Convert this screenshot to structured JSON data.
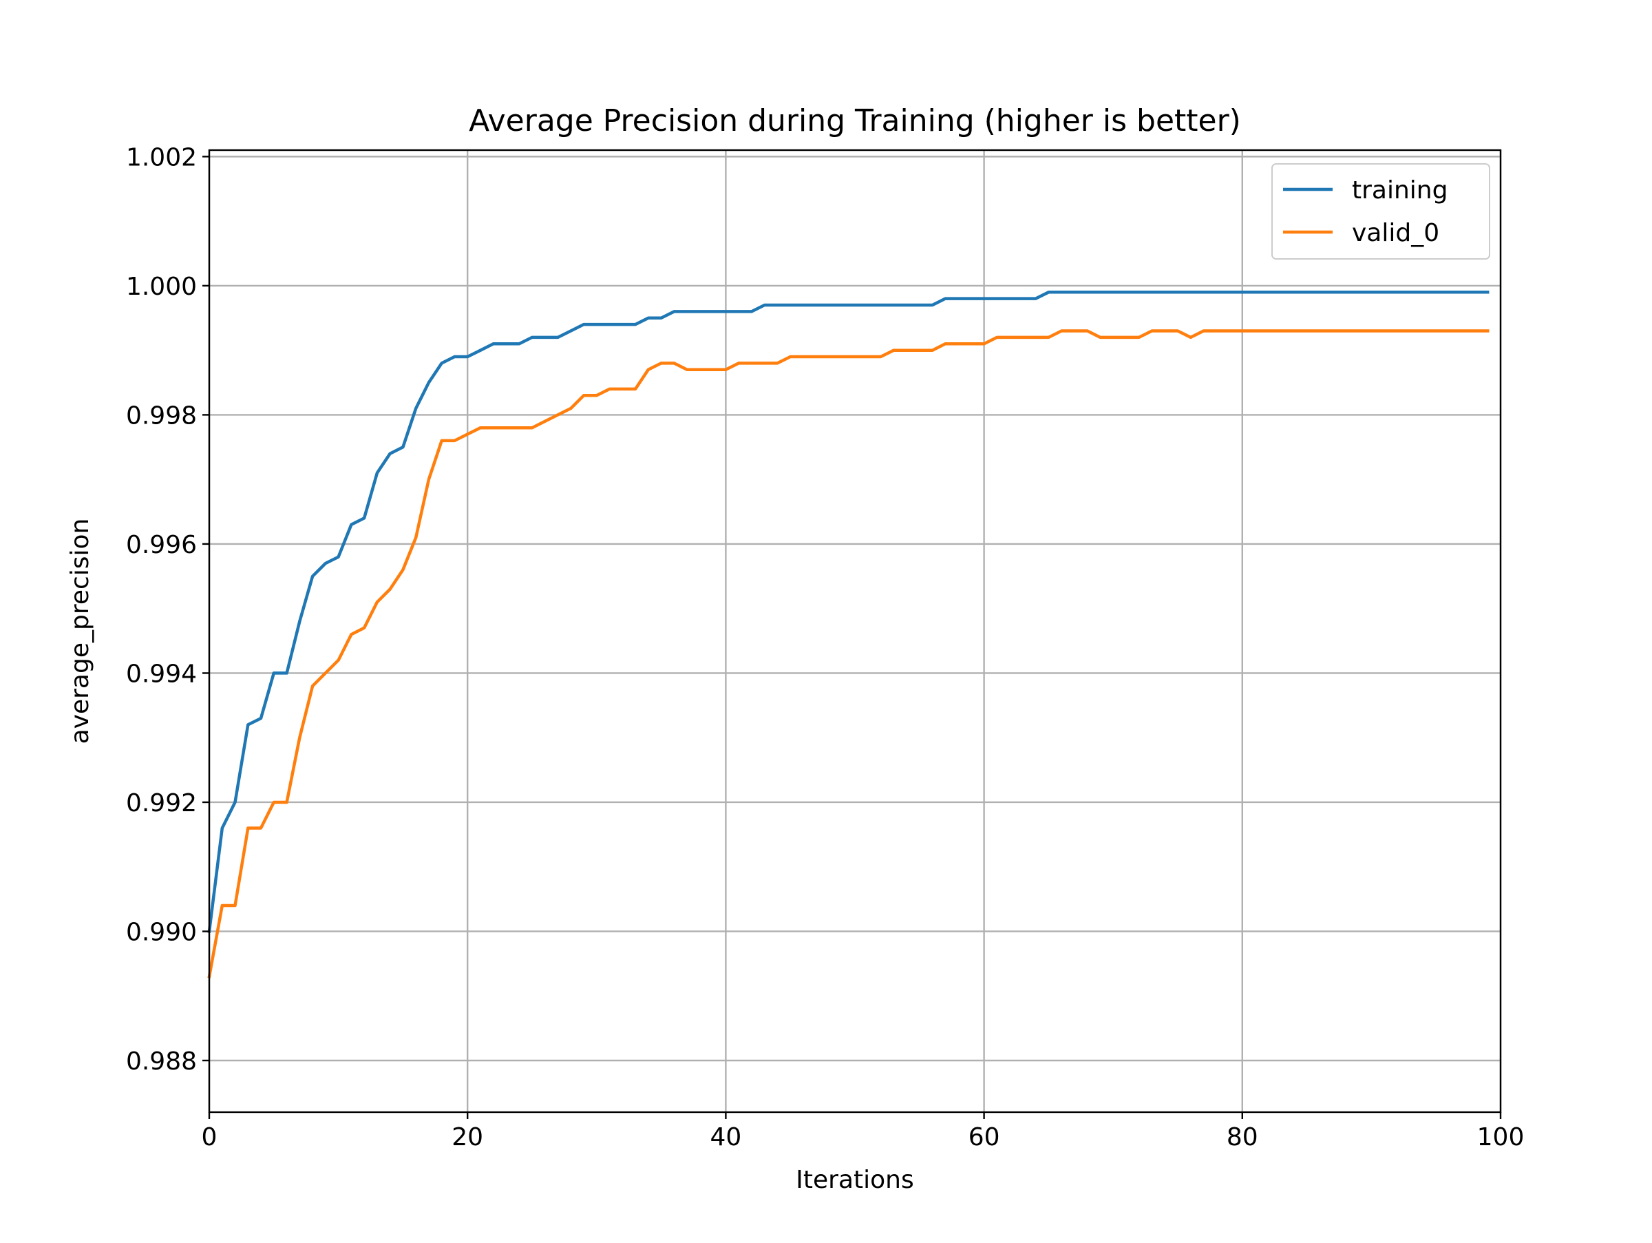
{
  "chart_data": {
    "type": "line",
    "title": "Average Precision during Training (higher is better)",
    "xlabel": "Iterations",
    "ylabel": "average_precision",
    "xlim": [
      0,
      100
    ],
    "ylim": [
      0.9872,
      1.0021
    ],
    "xticks": [
      0,
      20,
      40,
      60,
      80,
      100
    ],
    "xtick_labels": [
      "0",
      "20",
      "40",
      "60",
      "80",
      "100"
    ],
    "yticks": [
      0.988,
      0.99,
      0.992,
      0.994,
      0.996,
      0.998,
      1.0,
      1.002
    ],
    "ytick_labels": [
      "0.988",
      "0.990",
      "0.992",
      "0.994",
      "0.996",
      "0.998",
      "1.000",
      "1.002"
    ],
    "grid": true,
    "legend_position": "top-right",
    "series": [
      {
        "name": "training",
        "color": "#1f77b4",
        "values": [
          0.99,
          0.9916,
          0.992,
          0.9932,
          0.9933,
          0.994,
          0.994,
          0.9948,
          0.9955,
          0.9957,
          0.9958,
          0.9963,
          0.9964,
          0.9971,
          0.9974,
          0.9975,
          0.9981,
          0.9985,
          0.9988,
          0.9989,
          0.9989,
          0.999,
          0.9991,
          0.9991,
          0.9991,
          0.9992,
          0.9992,
          0.9992,
          0.9993,
          0.9994,
          0.9994,
          0.9994,
          0.9994,
          0.9994,
          0.9995,
          0.9995,
          0.9996,
          0.9996,
          0.9996,
          0.9996,
          0.9996,
          0.9996,
          0.9996,
          0.9997,
          0.9997,
          0.9997,
          0.9997,
          0.9997,
          0.9997,
          0.9997,
          0.9997,
          0.9997,
          0.9997,
          0.9997,
          0.9997,
          0.9997,
          0.9997,
          0.9998,
          0.9998,
          0.9998,
          0.9998,
          0.9998,
          0.9998,
          0.9998,
          0.9998,
          0.9999,
          0.9999,
          0.9999,
          0.9999,
          0.9999,
          0.9999,
          0.9999,
          0.9999,
          0.9999,
          0.9999,
          0.9999,
          0.9999,
          0.9999,
          0.9999,
          0.9999,
          0.9999,
          0.9999,
          0.9999,
          0.9999,
          0.9999,
          0.9999,
          0.9999,
          0.9999,
          0.9999,
          0.9999,
          0.9999,
          0.9999,
          0.9999,
          0.9999,
          0.9999,
          0.9999,
          0.9999,
          0.9999,
          0.9999,
          0.9999
        ]
      },
      {
        "name": "valid_0",
        "color": "#ff7f0e",
        "values": [
          0.9893,
          0.9904,
          0.9904,
          0.9916,
          0.9916,
          0.992,
          0.992,
          0.993,
          0.9938,
          0.994,
          0.9942,
          0.9946,
          0.9947,
          0.9951,
          0.9953,
          0.9956,
          0.9961,
          0.997,
          0.9976,
          0.9976,
          0.9977,
          0.9978,
          0.9978,
          0.9978,
          0.9978,
          0.9978,
          0.9979,
          0.998,
          0.9981,
          0.9983,
          0.9983,
          0.9984,
          0.9984,
          0.9984,
          0.9987,
          0.9988,
          0.9988,
          0.9987,
          0.9987,
          0.9987,
          0.9987,
          0.9988,
          0.9988,
          0.9988,
          0.9988,
          0.9989,
          0.9989,
          0.9989,
          0.9989,
          0.9989,
          0.9989,
          0.9989,
          0.9989,
          0.999,
          0.999,
          0.999,
          0.999,
          0.9991,
          0.9991,
          0.9991,
          0.9991,
          0.9992,
          0.9992,
          0.9992,
          0.9992,
          0.9992,
          0.9993,
          0.9993,
          0.9993,
          0.9992,
          0.9992,
          0.9992,
          0.9992,
          0.9993,
          0.9993,
          0.9993,
          0.9992,
          0.9993,
          0.9993,
          0.9993,
          0.9993,
          0.9993,
          0.9993,
          0.9993,
          0.9993,
          0.9993,
          0.9993,
          0.9993,
          0.9993,
          0.9993,
          0.9993,
          0.9993,
          0.9993,
          0.9993,
          0.9993,
          0.9993,
          0.9993,
          0.9993,
          0.9993,
          0.9993
        ]
      }
    ]
  }
}
